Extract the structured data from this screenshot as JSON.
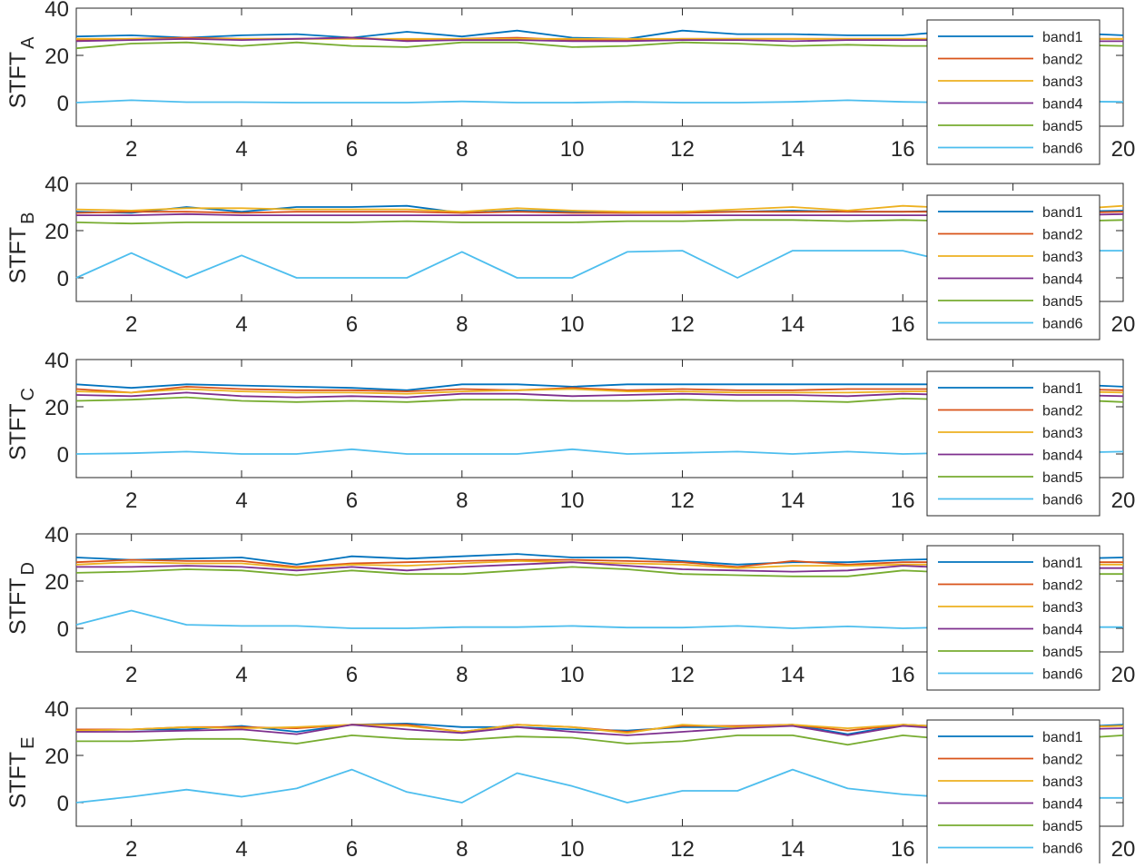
{
  "chart_data": [
    {
      "type": "line",
      "ylabel": "STFT",
      "ylabel_sub": "A",
      "xlim": [
        1,
        20
      ],
      "ylim": [
        -10,
        40
      ],
      "xticks": [
        2,
        4,
        6,
        8,
        10,
        12,
        14,
        16,
        18,
        20
      ],
      "xtick_labels": [
        "2",
        "4",
        "6",
        "8",
        "10",
        "12",
        "14",
        "16",
        "",
        "20"
      ],
      "yticks": [
        0,
        20,
        40
      ],
      "legend_position": "right",
      "x": [
        1,
        2,
        3,
        4,
        5,
        6,
        7,
        8,
        9,
        10,
        11,
        12,
        13,
        14,
        15,
        16,
        17,
        18,
        19,
        20
      ],
      "series": [
        {
          "name": "band1",
          "color": "#0072BD",
          "values": [
            28,
            28.5,
            27.5,
            28.5,
            29,
            27.5,
            30,
            28,
            30.5,
            27.5,
            27,
            30.5,
            29,
            29,
            28.5,
            28.5,
            30.5,
            29,
            29.5,
            28.5
          ]
        },
        {
          "name": "band2",
          "color": "#D95319",
          "values": [
            26.5,
            27,
            27.5,
            27,
            27,
            27.5,
            26.5,
            27,
            27.5,
            26.5,
            26.5,
            27,
            27,
            27,
            27,
            27,
            27,
            27,
            27,
            27
          ]
        },
        {
          "name": "band3",
          "color": "#EDB120",
          "values": [
            27,
            27,
            27,
            27,
            27,
            27,
            27,
            27,
            27,
            27,
            27,
            27,
            27,
            27,
            27,
            27,
            27,
            27,
            27,
            27
          ]
        },
        {
          "name": "band4",
          "color": "#7E2F8E",
          "values": [
            26,
            26.5,
            27,
            26.5,
            27,
            27.5,
            26,
            26.5,
            26.5,
            26,
            26,
            26.5,
            26.5,
            26,
            26.5,
            26.5,
            26.5,
            26,
            26,
            26
          ]
        },
        {
          "name": "band5",
          "color": "#77AC30",
          "values": [
            23,
            25,
            25.5,
            24,
            25.5,
            24,
            23.5,
            25.5,
            25.5,
            23.5,
            24,
            25.5,
            25,
            24,
            24.5,
            24,
            24,
            24,
            24.5,
            24
          ]
        },
        {
          "name": "band6",
          "color": "#4DBEEE",
          "values": [
            0,
            1,
            0.2,
            0.2,
            0,
            0,
            0,
            0.5,
            0,
            0,
            0.3,
            0,
            0,
            0.3,
            1,
            0.3,
            0,
            0.3,
            0.5,
            0.3
          ]
        }
      ]
    },
    {
      "type": "line",
      "ylabel": "STFT",
      "ylabel_sub": "B",
      "xlim": [
        1,
        20
      ],
      "ylim": [
        -10,
        40
      ],
      "xticks": [
        2,
        4,
        6,
        8,
        10,
        12,
        14,
        16,
        18,
        20
      ],
      "xtick_labels": [
        "2",
        "4",
        "6",
        "8",
        "10",
        "12",
        "14",
        "16",
        "",
        "20"
      ],
      "yticks": [
        0,
        20,
        40
      ],
      "legend_position": "right",
      "x": [
        1,
        2,
        3,
        4,
        5,
        6,
        7,
        8,
        9,
        10,
        11,
        12,
        13,
        14,
        15,
        16,
        17,
        18,
        19,
        20
      ],
      "series": [
        {
          "name": "band1",
          "color": "#0072BD",
          "values": [
            28,
            27.5,
            30,
            28,
            30,
            30,
            30.5,
            27.5,
            28.5,
            28,
            27.5,
            28,
            28,
            28.5,
            28,
            28,
            28.5,
            28.5,
            28,
            28.5
          ]
        },
        {
          "name": "band2",
          "color": "#D95319",
          "values": [
            27.5,
            28,
            28,
            27.5,
            28,
            28,
            28,
            27.5,
            28,
            27.5,
            27.5,
            27.5,
            28,
            28,
            28,
            28,
            28,
            28,
            27.5,
            28
          ]
        },
        {
          "name": "band3",
          "color": "#EDB120",
          "values": [
            29,
            28.5,
            29.5,
            29.5,
            29,
            29,
            29,
            28,
            29.5,
            28.5,
            28,
            28,
            29,
            30,
            28.5,
            30.5,
            29.5,
            29.5,
            29,
            30.5
          ]
        },
        {
          "name": "band4",
          "color": "#7E2F8E",
          "values": [
            26.5,
            26.5,
            27,
            26.5,
            26.5,
            26.5,
            26.5,
            26.5,
            26.5,
            26.5,
            26.5,
            26.5,
            26.5,
            26.5,
            26.5,
            26.5,
            26.5,
            26.5,
            26.5,
            27
          ]
        },
        {
          "name": "band5",
          "color": "#77AC30",
          "values": [
            23.5,
            23,
            23.5,
            23.5,
            23.5,
            23.5,
            24,
            23.5,
            23.5,
            23.5,
            24,
            24,
            24.5,
            24.5,
            24,
            24.5,
            24,
            24.5,
            24,
            24.5
          ]
        },
        {
          "name": "band6",
          "color": "#4DBEEE",
          "values": [
            0,
            10.5,
            0,
            9.5,
            0,
            0,
            0,
            11,
            0,
            0,
            11,
            11.5,
            0,
            11.5,
            11.5,
            11.5,
            6,
            11.5,
            11.5,
            11.5
          ]
        }
      ]
    },
    {
      "type": "line",
      "ylabel": "STFT",
      "ylabel_sub": "C",
      "xlim": [
        1,
        20
      ],
      "ylim": [
        -10,
        40
      ],
      "xticks": [
        2,
        4,
        6,
        8,
        10,
        12,
        14,
        16,
        18,
        20
      ],
      "xtick_labels": [
        "2",
        "4",
        "6",
        "8",
        "10",
        "12",
        "14",
        "16",
        "",
        "20"
      ],
      "yticks": [
        0,
        20,
        40
      ],
      "legend_position": "right",
      "x": [
        1,
        2,
        3,
        4,
        5,
        6,
        7,
        8,
        9,
        10,
        11,
        12,
        13,
        14,
        15,
        16,
        17,
        18,
        19,
        20
      ],
      "series": [
        {
          "name": "band1",
          "color": "#0072BD",
          "values": [
            29.5,
            28,
            29.5,
            29,
            28.5,
            28,
            27,
            29.5,
            29.5,
            28.5,
            29.5,
            29.5,
            29.5,
            29.5,
            29.5,
            29.5,
            29.5,
            29.5,
            29.5,
            28.5
          ]
        },
        {
          "name": "band2",
          "color": "#D95319",
          "values": [
            27.5,
            26,
            28.5,
            27.5,
            27,
            27,
            26.5,
            27.5,
            27,
            28,
            27,
            27.5,
            27,
            27,
            27.5,
            27.5,
            27.5,
            27.5,
            27.5,
            27
          ]
        },
        {
          "name": "band3",
          "color": "#EDB120",
          "values": [
            26.5,
            26,
            27.5,
            26.5,
            26,
            26,
            25.5,
            26.5,
            27,
            27.5,
            26.5,
            26.5,
            26,
            26,
            26,
            26.5,
            26.5,
            26.5,
            26.5,
            26
          ]
        },
        {
          "name": "band4",
          "color": "#7E2F8E",
          "values": [
            25,
            24.5,
            26,
            24.5,
            24,
            24.5,
            24,
            25.5,
            25.5,
            24.5,
            25,
            25.5,
            25,
            25,
            24.5,
            25.5,
            25,
            25,
            25,
            24.5
          ]
        },
        {
          "name": "band5",
          "color": "#77AC30",
          "values": [
            22.5,
            23,
            24,
            22.5,
            22,
            22.5,
            22,
            23,
            23,
            22.5,
            22.5,
            23,
            22.5,
            22.5,
            22,
            23.5,
            23,
            23,
            23,
            22
          ]
        },
        {
          "name": "band6",
          "color": "#4DBEEE",
          "values": [
            0,
            0.3,
            1,
            0,
            0,
            2,
            0,
            0,
            0,
            2,
            0,
            0.5,
            1,
            0,
            1,
            0,
            0.5,
            0.5,
            0.5,
            1
          ]
        }
      ]
    },
    {
      "type": "line",
      "ylabel": "STFT",
      "ylabel_sub": "D",
      "xlim": [
        1,
        20
      ],
      "ylim": [
        -10,
        40
      ],
      "xticks": [
        2,
        4,
        6,
        8,
        10,
        12,
        14,
        16,
        18,
        20
      ],
      "xtick_labels": [
        "2",
        "4",
        "6",
        "8",
        "10",
        "12",
        "14",
        "16",
        "",
        "20"
      ],
      "yticks": [
        0,
        20,
        40
      ],
      "legend_position": "right",
      "x": [
        1,
        2,
        3,
        4,
        5,
        6,
        7,
        8,
        9,
        10,
        11,
        12,
        13,
        14,
        15,
        16,
        17,
        18,
        19,
        20
      ],
      "series": [
        {
          "name": "band1",
          "color": "#0072BD",
          "values": [
            30,
            29,
            29.5,
            30,
            27,
            30.5,
            29.5,
            30.5,
            31.5,
            30,
            30,
            28.5,
            27,
            28,
            28,
            29,
            29.5,
            29,
            29.5,
            30
          ]
        },
        {
          "name": "band2",
          "color": "#D95319",
          "values": [
            28,
            29,
            28.5,
            28.5,
            26,
            27.5,
            28,
            28.5,
            29,
            29,
            28.5,
            28,
            26,
            28.5,
            27,
            28,
            28,
            28,
            28,
            28
          ]
        },
        {
          "name": "band3",
          "color": "#EDB120",
          "values": [
            27,
            28,
            27.5,
            27.5,
            25.5,
            27,
            26.5,
            27.5,
            28.5,
            28,
            27.5,
            27,
            25.5,
            26.5,
            26.5,
            27,
            27,
            27,
            27,
            27
          ]
        },
        {
          "name": "band4",
          "color": "#7E2F8E",
          "values": [
            26,
            26,
            26.5,
            26,
            24.5,
            26,
            24.5,
            26,
            27,
            28,
            26.5,
            25,
            24.5,
            24,
            24.5,
            26.5,
            25.5,
            25.5,
            25.5,
            25.5
          ]
        },
        {
          "name": "band5",
          "color": "#77AC30",
          "values": [
            23.5,
            24,
            25,
            24.5,
            22.5,
            24.5,
            23,
            23,
            24.5,
            26,
            25,
            23,
            22.5,
            22,
            22,
            24.5,
            23.5,
            23,
            23,
            23
          ]
        },
        {
          "name": "band6",
          "color": "#4DBEEE",
          "values": [
            1.5,
            7.5,
            1.5,
            1,
            1,
            0,
            0,
            0.5,
            0.5,
            1,
            0.3,
            0.3,
            1,
            0,
            0.8,
            0,
            0.5,
            0.5,
            0.5,
            0.5
          ]
        }
      ]
    },
    {
      "type": "line",
      "ylabel": "STFT",
      "ylabel_sub": "E",
      "xlim": [
        1,
        20
      ],
      "ylim": [
        -10,
        40
      ],
      "xticks": [
        2,
        4,
        6,
        8,
        10,
        12,
        14,
        16,
        18,
        20
      ],
      "xtick_labels": [
        "2",
        "4",
        "6",
        "8",
        "10",
        "12",
        "14",
        "16",
        "",
        "20"
      ],
      "yticks": [
        0,
        20,
        40
      ],
      "legend_position": "right",
      "x": [
        1,
        2,
        3,
        4,
        5,
        6,
        7,
        8,
        9,
        10,
        11,
        12,
        13,
        14,
        15,
        16,
        17,
        18,
        19,
        20
      ],
      "series": [
        {
          "name": "band1",
          "color": "#0072BD",
          "values": [
            30.5,
            31,
            31,
            32.5,
            30,
            33,
            33.5,
            32,
            32,
            31,
            30.5,
            32,
            32,
            33,
            29,
            33,
            32,
            32,
            32,
            33
          ]
        },
        {
          "name": "band2",
          "color": "#D95319",
          "values": [
            31,
            31,
            32,
            32,
            31.5,
            33,
            33,
            30,
            33,
            32,
            30,
            32.5,
            32.5,
            33,
            30.5,
            33,
            32,
            32,
            32,
            32.5
          ]
        },
        {
          "name": "band3",
          "color": "#EDB120",
          "values": [
            30.5,
            31,
            32,
            31.5,
            32,
            33,
            32.5,
            30,
            33,
            32,
            29.5,
            33,
            32,
            33,
            31.5,
            33,
            32,
            32,
            32,
            32.5
          ]
        },
        {
          "name": "band4",
          "color": "#7E2F8E",
          "values": [
            30,
            30,
            30.5,
            31,
            29,
            33,
            31,
            29.5,
            32,
            30,
            28.5,
            30,
            31.5,
            32.5,
            28.5,
            32.5,
            31,
            31,
            31,
            31.5
          ]
        },
        {
          "name": "band5",
          "color": "#77AC30",
          "values": [
            26,
            26,
            27,
            27,
            25,
            28.5,
            27,
            26.5,
            28,
            27.5,
            25,
            26,
            28.5,
            28.5,
            24.5,
            28.5,
            26.5,
            27,
            27,
            28.5
          ]
        },
        {
          "name": "band6",
          "color": "#4DBEEE",
          "values": [
            0,
            2.5,
            5.5,
            2.5,
            6,
            14,
            4.5,
            0,
            12.5,
            7,
            0,
            5,
            5,
            14,
            6,
            3.5,
            2,
            2,
            2,
            2
          ]
        }
      ]
    }
  ]
}
